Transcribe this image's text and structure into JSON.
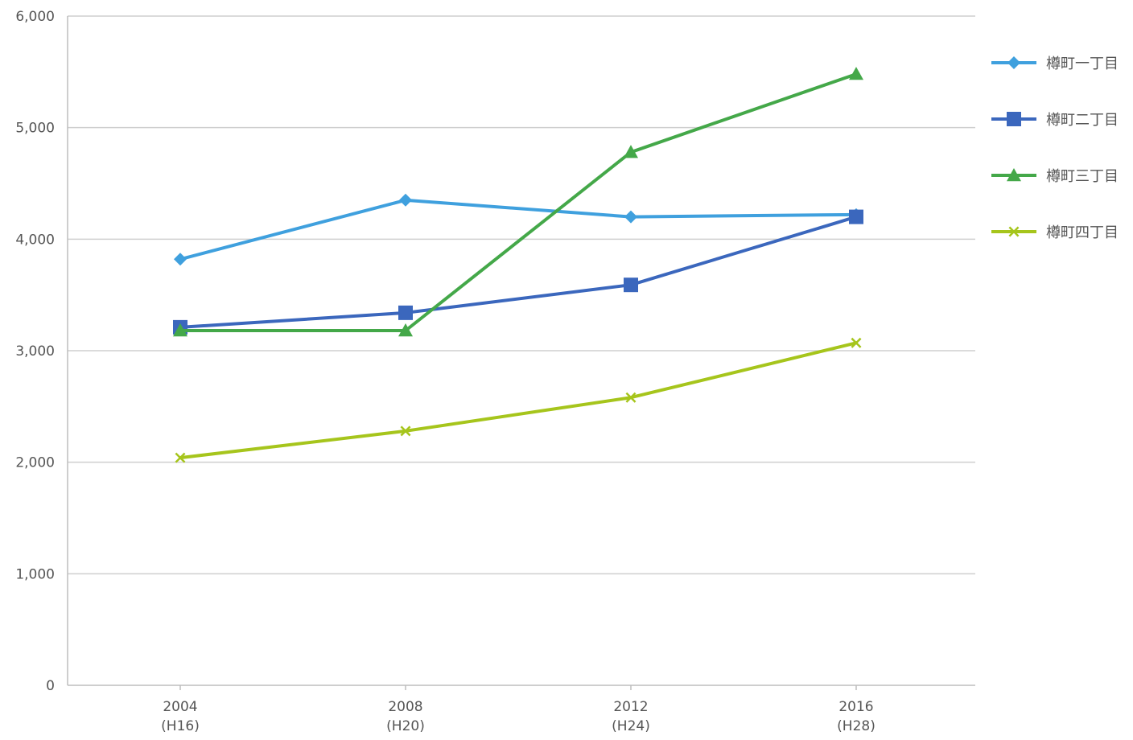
{
  "chart_data": {
    "type": "line",
    "categories": [
      "2004\n(H16)",
      "2008\n(H20)",
      "2012\n(H24)",
      "2016\n(H28)"
    ],
    "category_lines": [
      [
        "2004",
        "(H16)"
      ],
      [
        "2008",
        "(H20)"
      ],
      [
        "2012",
        "(H24)"
      ],
      [
        "2016",
        "(H28)"
      ]
    ],
    "x": [
      2004,
      2008,
      2012,
      2016
    ],
    "xlim": [
      2004,
      2016
    ],
    "ylim": [
      0,
      6000
    ],
    "yticks": [
      0,
      1000,
      2000,
      3000,
      4000,
      5000,
      6000
    ],
    "ytick_labels": [
      "0",
      "1,000",
      "2,000",
      "3,000",
      "4,000",
      "5,000",
      "6,000"
    ],
    "grid": true,
    "legend_position": "right",
    "series": [
      {
        "name": "樽町一丁目",
        "values": [
          3820,
          4350,
          4200,
          4220
        ],
        "color": "#3fa0de",
        "marker": "diamond"
      },
      {
        "name": "樽町二丁目",
        "values": [
          3210,
          3340,
          3590,
          4200
        ],
        "color": "#3b67bd",
        "marker": "square"
      },
      {
        "name": "樽町三丁目",
        "values": [
          3180,
          3180,
          4780,
          5480
        ],
        "color": "#44a849",
        "marker": "triangle"
      },
      {
        "name": "樽町四丁目",
        "values": [
          2040,
          2280,
          2580,
          3070
        ],
        "color": "#a6c51c",
        "marker": "x"
      }
    ],
    "title": "",
    "xlabel": "",
    "ylabel": ""
  }
}
